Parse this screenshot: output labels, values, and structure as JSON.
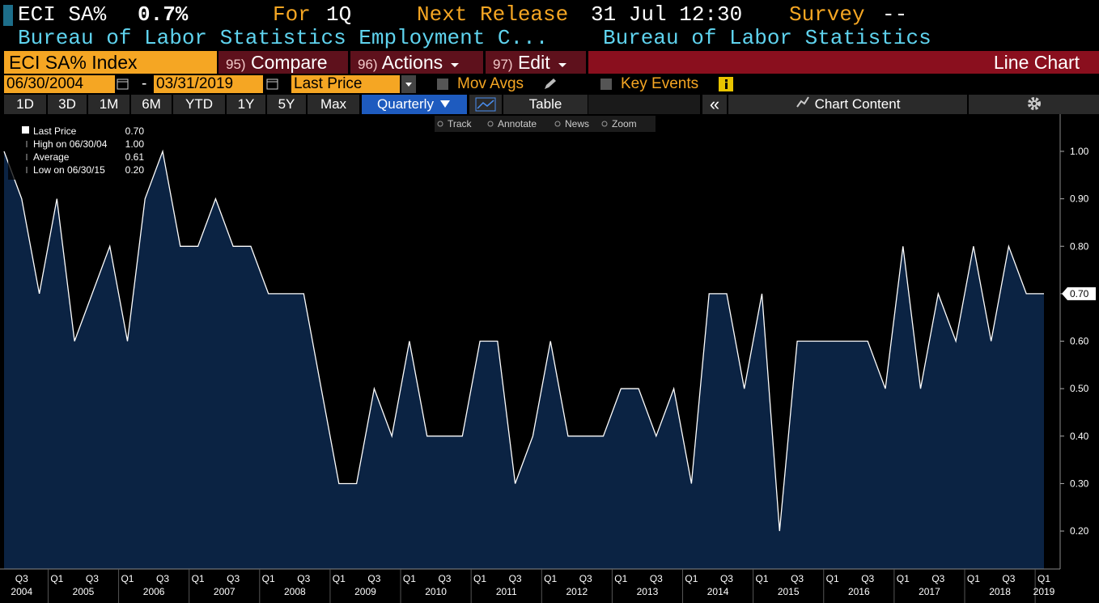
{
  "header": {
    "ticker": "ECI SA%",
    "value": "0.7%",
    "for_label": "For",
    "period": "1Q",
    "next_release_label": "Next Release",
    "next_release": "31 Jul 12:30",
    "survey_label": "Survey",
    "survey": "--",
    "description": "Bureau of Labor Statistics Employment C...",
    "source": "Bureau of Labor Statistics"
  },
  "toolbar": {
    "security": "ECI SA% Index",
    "buttons": [
      {
        "num": "95)",
        "label": "Compare"
      },
      {
        "num": "96)",
        "label": "Actions"
      },
      {
        "num": "97)",
        "label": "Edit"
      }
    ],
    "view": "Line Chart",
    "start_date": "06/30/2004",
    "date_separator": "-",
    "end_date": "03/31/2019",
    "field": "Last Price",
    "mov_avgs": "Mov Avgs",
    "key_events": "Key Events",
    "ranges": [
      "1D",
      "3D",
      "1M",
      "6M",
      "YTD",
      "1Y",
      "5Y",
      "Max"
    ],
    "frequency": "Quarterly",
    "table": "Table",
    "collapse": "«",
    "chart_content": "Chart Content",
    "tools": [
      "Track",
      "Annotate",
      "News",
      "Zoom"
    ]
  },
  "chart_data": {
    "type": "area",
    "categories": [
      null,
      "Q3",
      null,
      "Q1",
      null,
      "Q3",
      null,
      "Q1",
      null,
      "Q3",
      null,
      "Q1",
      null,
      "Q3",
      null,
      "Q1",
      null,
      "Q3",
      null,
      "Q1",
      null,
      "Q3",
      null,
      "Q1",
      null,
      "Q3",
      null,
      "Q1",
      null,
      "Q3",
      null,
      "Q1",
      null,
      "Q3",
      null,
      "Q1",
      null,
      "Q3",
      null,
      "Q1",
      null,
      "Q3",
      null,
      "Q1",
      null,
      "Q3",
      null,
      "Q1",
      null,
      "Q3",
      null,
      "Q1",
      null,
      "Q3",
      null,
      "Q1",
      null,
      "Q3",
      null,
      "Q1"
    ],
    "years": [
      "2004",
      "2005",
      "2006",
      "2007",
      "2008",
      "2009",
      "2010",
      "2011",
      "2012",
      "2013",
      "2014",
      "2015",
      "2016",
      "2017",
      "2018",
      "2019"
    ],
    "series": [
      {
        "name": "Last Price",
        "color": "#ffffff",
        "fill": "#0b2343",
        "values": [
          1.0,
          0.9,
          0.7,
          0.9,
          0.6,
          0.7,
          0.8,
          0.6,
          0.9,
          1.0,
          0.8,
          0.8,
          0.9,
          0.8,
          0.8,
          0.7,
          0.7,
          0.7,
          0.5,
          0.3,
          0.3,
          0.5,
          0.4,
          0.6,
          0.4,
          0.4,
          0.4,
          0.6,
          0.6,
          0.3,
          0.4,
          0.6,
          0.4,
          0.4,
          0.4,
          0.5,
          0.5,
          0.4,
          0.5,
          0.3,
          0.7,
          0.7,
          0.5,
          0.7,
          0.2,
          0.6,
          0.6,
          0.6,
          0.6,
          0.6,
          0.5,
          0.8,
          0.5,
          0.7,
          0.6,
          0.8,
          0.6,
          0.8,
          0.7,
          0.7
        ]
      }
    ],
    "stats": [
      {
        "label": "Last Price",
        "value": "0.70"
      },
      {
        "label": "High on 06/30/04",
        "value": "1.00"
      },
      {
        "label": "Average",
        "value": "0.61"
      },
      {
        "label": "Low on 06/30/15",
        "value": "0.20"
      }
    ],
    "ylim": [
      0.12,
      1.075
    ],
    "yticks": [
      {
        "value": 0.2,
        "label": "0.20"
      },
      {
        "value": 0.3,
        "label": "0.30"
      },
      {
        "value": 0.4,
        "label": "0.40"
      },
      {
        "value": 0.5,
        "label": "0.50"
      },
      {
        "value": 0.6,
        "label": "0.60"
      },
      {
        "value": 0.7,
        "label": "0.70"
      },
      {
        "value": 0.8,
        "label": "0.80"
      },
      {
        "value": 0.9,
        "label": "0.90"
      },
      {
        "value": 1.0,
        "label": "1.00"
      }
    ],
    "grid": false
  }
}
